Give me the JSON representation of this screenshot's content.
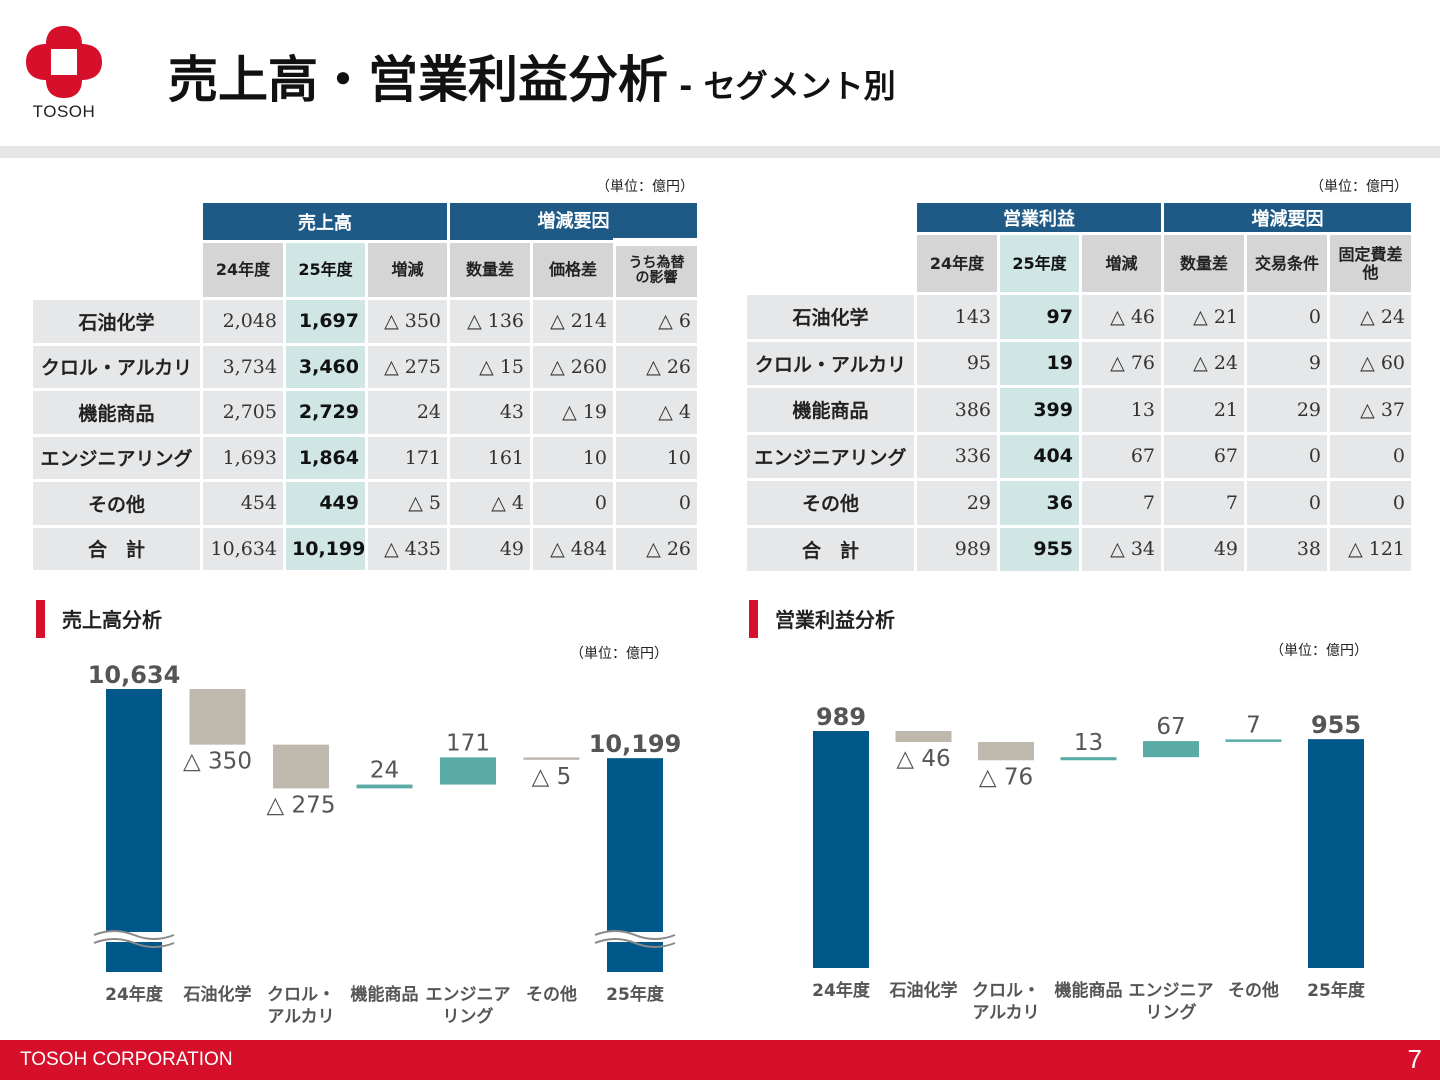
{
  "header": {
    "logo_text": "TOSOH",
    "title_main": "売上高・営業利益分析",
    "title_sub": " - セグメント別",
    "brand_color": "#d6102b"
  },
  "unit_label": "（単位：億円）",
  "sales_table": {
    "group_main": "売上高",
    "group_factors": "増減要因",
    "columns": [
      "24年度",
      "25年度",
      "増減",
      "数量差",
      "価格差",
      "うち為替の影響"
    ],
    "rows": [
      {
        "label": "石油化学",
        "values": [
          "2,048",
          "1,697",
          "△ 350",
          "△ 136",
          "△ 214",
          "△ 6"
        ]
      },
      {
        "label": "クロル・アルカリ",
        "values": [
          "3,734",
          "3,460",
          "△ 275",
          "△ 15",
          "△ 260",
          "△ 26"
        ]
      },
      {
        "label": "機能商品",
        "values": [
          "2,705",
          "2,729",
          "24",
          "43",
          "△ 19",
          "△ 4"
        ]
      },
      {
        "label": "エンジニアリング",
        "values": [
          "1,693",
          "1,864",
          "171",
          "161",
          "10",
          "10"
        ]
      },
      {
        "label": "その他",
        "values": [
          "454",
          "449",
          "△ 5",
          "△ 4",
          "0",
          "0"
        ]
      },
      {
        "label": "合　計",
        "values": [
          "10,634",
          "10,199",
          "△ 435",
          "49",
          "△ 484",
          "△ 26"
        ]
      }
    ]
  },
  "profit_table": {
    "group_main": "営業利益",
    "group_factors": "増減要因",
    "columns": [
      "24年度",
      "25年度",
      "増減",
      "数量差",
      "交易条件",
      "固定費差他"
    ],
    "rows": [
      {
        "label": "石油化学",
        "values": [
          "143",
          "97",
          "△ 46",
          "△ 21",
          "0",
          "△ 24"
        ]
      },
      {
        "label": "クロル・アルカリ",
        "values": [
          "95",
          "19",
          "△ 76",
          "△ 24",
          "9",
          "△ 60"
        ]
      },
      {
        "label": "機能商品",
        "values": [
          "386",
          "399",
          "13",
          "21",
          "29",
          "△ 37"
        ]
      },
      {
        "label": "エンジニアリング",
        "values": [
          "336",
          "404",
          "67",
          "67",
          "0",
          "0"
        ]
      },
      {
        "label": "その他",
        "values": [
          "29",
          "36",
          "7",
          "7",
          "0",
          "0"
        ]
      },
      {
        "label": "合　計",
        "values": [
          "989",
          "955",
          "△ 34",
          "49",
          "38",
          "△ 121"
        ]
      }
    ]
  },
  "sales_section_title": "売上高分析",
  "profit_section_title": "営業利益分析",
  "colors": {
    "total_bar": "#00578a",
    "decrease": "#bfb9ad",
    "increase": "#5aaba5",
    "table_header": "#1f5a87",
    "highlight": "#cfe6e4"
  },
  "chart_data": [
    {
      "type": "bar",
      "title": "売上高分析",
      "variant": "waterfall",
      "axis_break": true,
      "categories": [
        "24年度",
        "石油化学",
        "クロル・アルカリ",
        "機能商品",
        "エンジニアリング",
        "その他",
        "25年度"
      ],
      "category_labels": [
        [
          "24年度"
        ],
        [
          "石油化学"
        ],
        [
          "クロル・",
          "アルカリ"
        ],
        [
          "機能商品"
        ],
        [
          "エンジニア",
          "リング"
        ],
        [
          "その他"
        ],
        [
          "25年度"
        ]
      ],
      "values": [
        10634,
        -350,
        -275,
        24,
        171,
        -5,
        10199
      ],
      "data_labels": [
        "10,634",
        "△ 350",
        "△ 275",
        "24",
        "171",
        "△ 5",
        "10,199"
      ],
      "kinds": [
        "total",
        "delta",
        "delta",
        "delta",
        "delta",
        "delta",
        "total"
      ]
    },
    {
      "type": "bar",
      "title": "営業利益分析",
      "variant": "waterfall",
      "axis_break": false,
      "categories": [
        "24年度",
        "石油化学",
        "クロル・アルカリ",
        "機能商品",
        "エンジニアリング",
        "その他",
        "25年度"
      ],
      "category_labels": [
        [
          "24年度"
        ],
        [
          "石油化学"
        ],
        [
          "クロル・",
          "アルカリ"
        ],
        [
          "機能商品"
        ],
        [
          "エンジニア",
          "リング"
        ],
        [
          "その他"
        ],
        [
          "25年度"
        ]
      ],
      "values": [
        989,
        -46,
        -76,
        13,
        67,
        7,
        955
      ],
      "data_labels": [
        "989",
        "△ 46",
        "△ 76",
        "13",
        "67",
        "7",
        "955"
      ],
      "kinds": [
        "total",
        "delta",
        "delta",
        "delta",
        "delta",
        "delta",
        "total"
      ]
    }
  ],
  "footer": {
    "company": "TOSOH CORPORATION",
    "page": "7"
  }
}
